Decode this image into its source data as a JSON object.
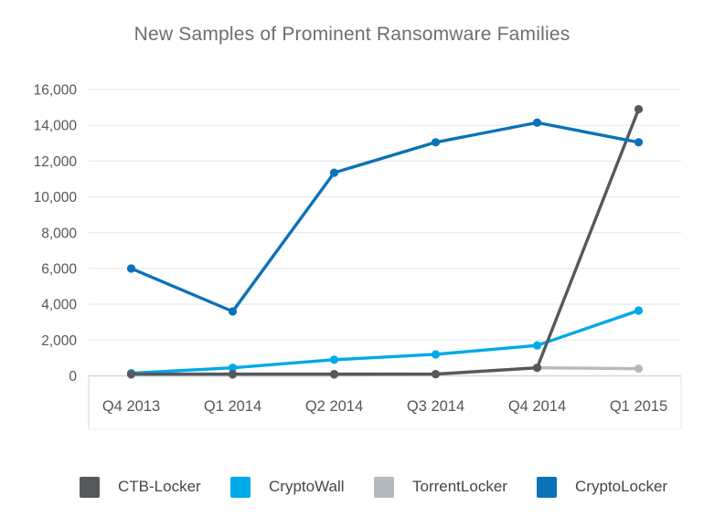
{
  "title": "New Samples of Prominent Ransomware Families",
  "colors": {
    "background": "#ffffff",
    "title_text": "#6d6e70",
    "axis_text": "#55565a",
    "legend_text": "#454649",
    "gridline": "#e9eaeb",
    "zero_line": "#d6d8d9",
    "axis_border": "#dcdee0"
  },
  "chart_data": {
    "type": "line",
    "title": "New Samples of Prominent Ransomware Families",
    "categories": [
      "Q4 2013",
      "Q1 2014",
      "Q2 2014",
      "Q3 2014",
      "Q4 2014",
      "Q1 2015"
    ],
    "series": [
      {
        "name": "CTB-Locker",
        "color": "#57585c",
        "values": [
          100,
          100,
          100,
          100,
          450,
          14900
        ]
      },
      {
        "name": "CryptoWall",
        "color": "#00a9e8",
        "values": [
          150,
          450,
          900,
          1200,
          1700,
          3650
        ]
      },
      {
        "name": "TorrentLocker",
        "color": "#b4babe",
        "values": [
          50,
          50,
          50,
          80,
          450,
          400
        ]
      },
      {
        "name": "CryptoLocker",
        "color": "#0b72b8",
        "values": [
          6000,
          3600,
          11350,
          13050,
          14150,
          13050
        ]
      }
    ],
    "draw_order": [
      "TorrentLocker",
      "CryptoWall",
      "CTB-Locker",
      "CryptoLocker"
    ],
    "xlabel": "",
    "ylabel": "",
    "ylim": [
      0,
      16000
    ],
    "ytick_step": 2000,
    "ytick_labels": [
      "0",
      "2,000",
      "4,000",
      "6,000",
      "8,000",
      "10,000",
      "12,000",
      "14,000",
      "16,000"
    ],
    "grid": "horizontal",
    "markers": true,
    "legend_position": "bottom"
  }
}
